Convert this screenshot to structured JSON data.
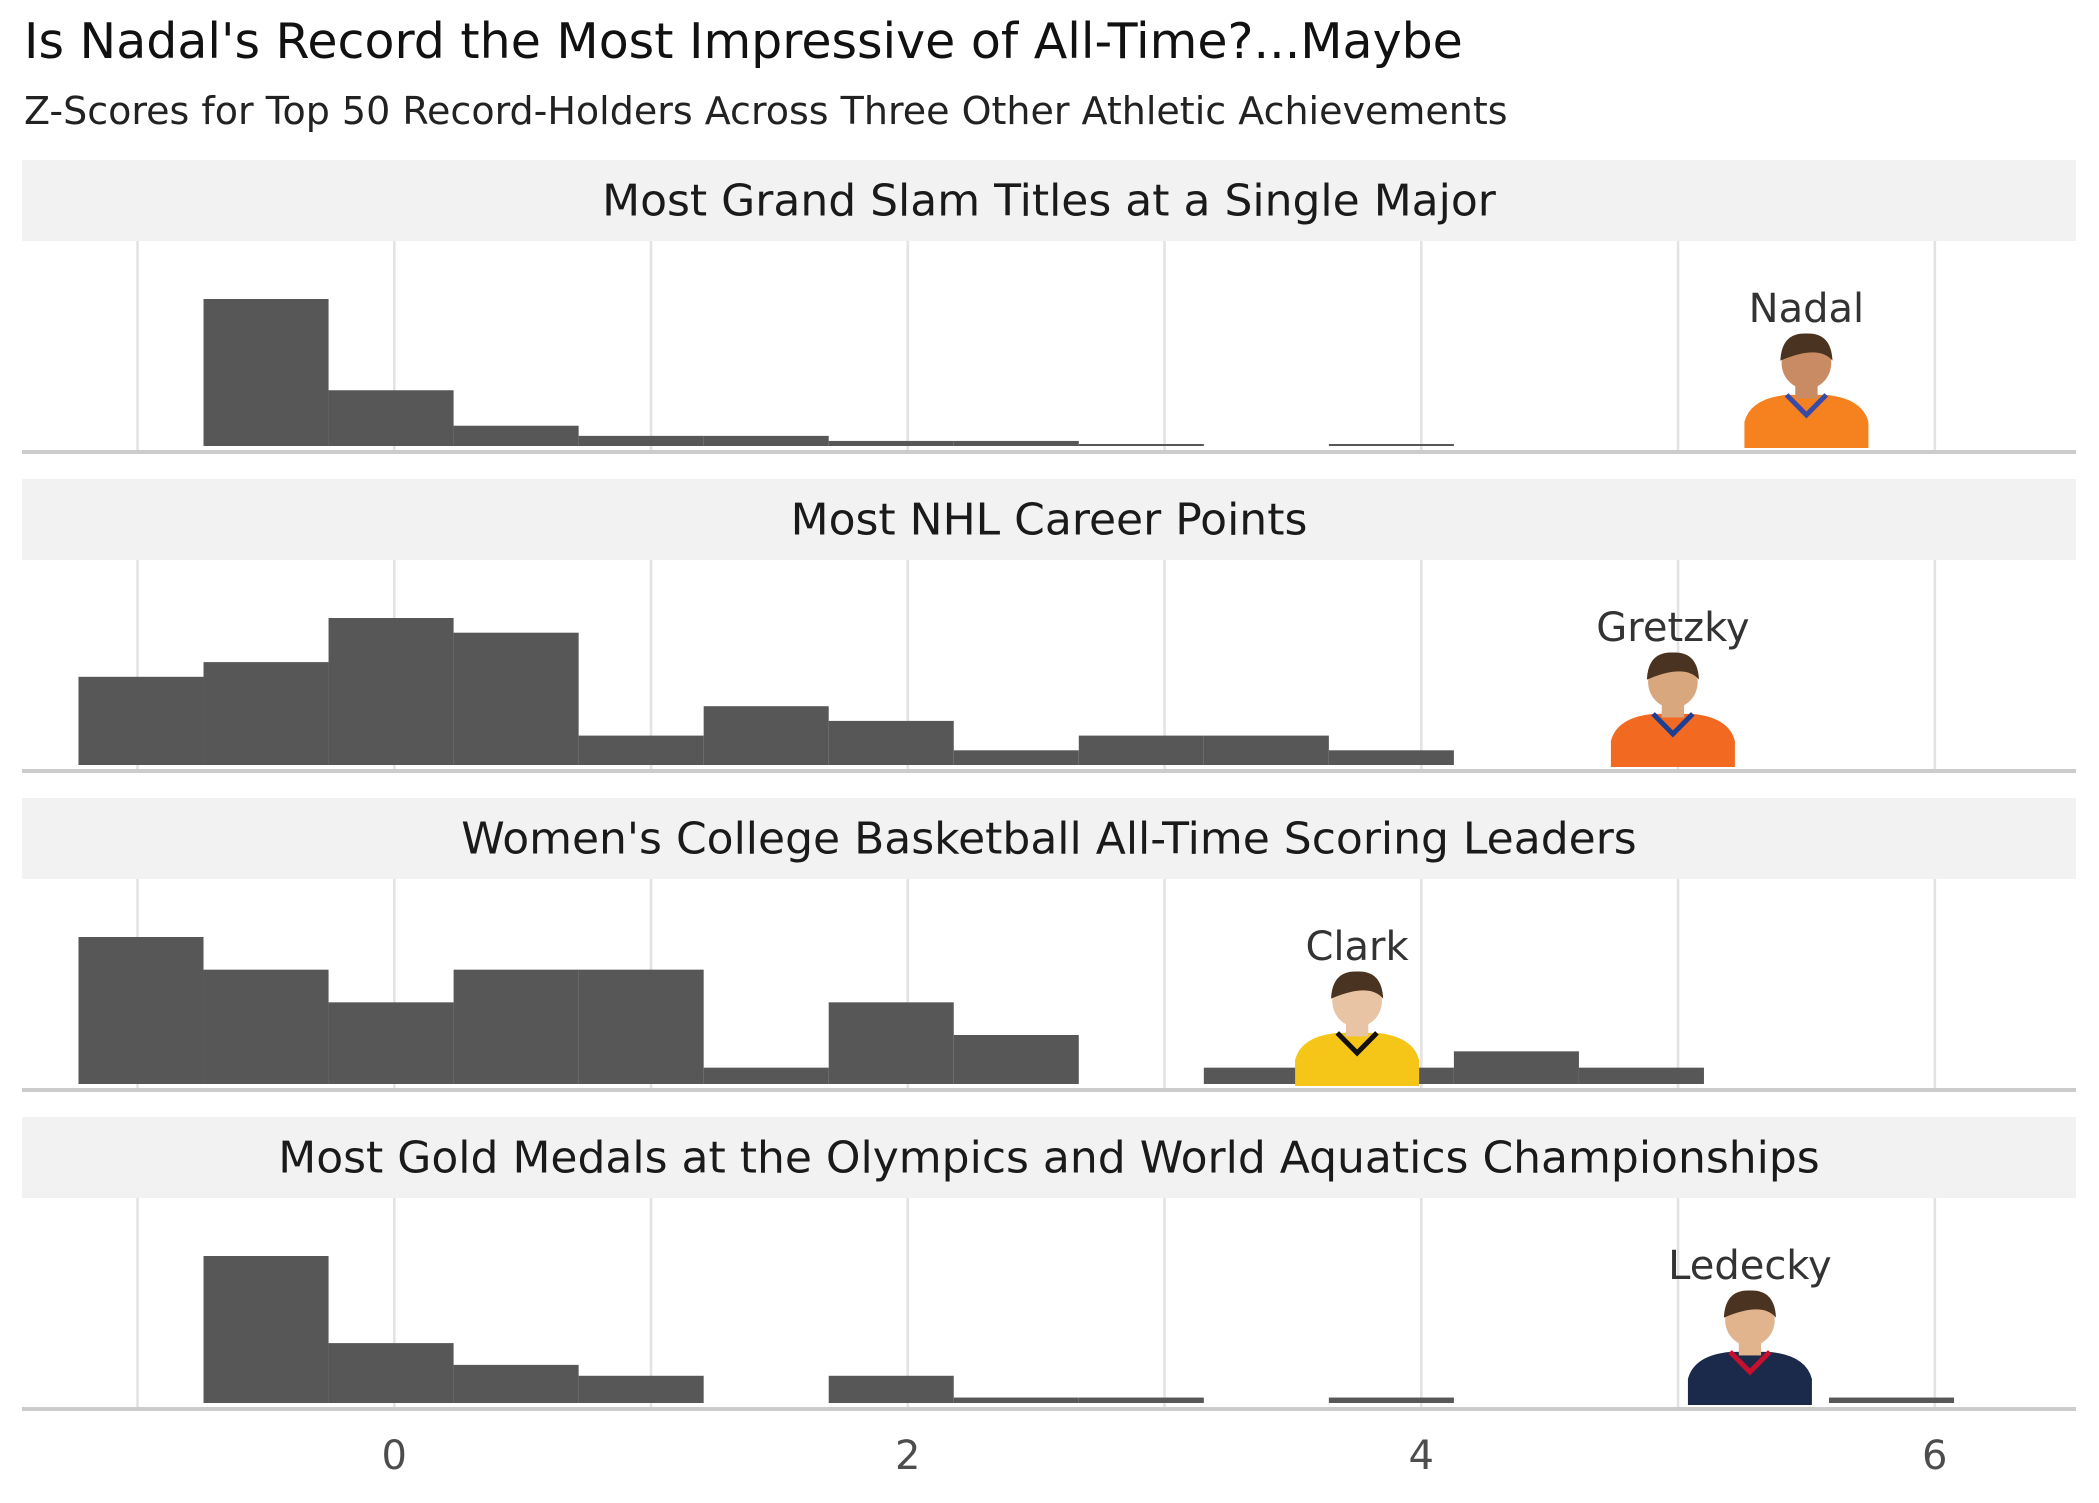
{
  "title": "Is Nadal's Record the Most Impressive of All-Time?...Maybe",
  "subtitle": "Z-Scores for Top 50 Record-Holders Across Three Other Athletic Achievements",
  "chart_data": {
    "type": "bar",
    "subtype": "histogram-facets",
    "x_ticks": [
      0,
      2,
      4,
      6
    ],
    "x_tick_labels": [
      "0",
      "2",
      "4",
      "6"
    ],
    "xlim": [
      -1.45,
      6.55
    ],
    "bin_width": 0.487,
    "grid": true,
    "colors": {
      "bar": "#575757",
      "strip": "#f2f2f2",
      "grid": "#e3e3e3",
      "baseline": "#cccccc"
    },
    "panels": [
      {
        "strip": "Most Grand Slam Titles at a Single Major",
        "ymax": 29,
        "bins": [
          {
            "x0": -1.23,
            "x1": -0.743,
            "count": 0
          },
          {
            "x0": -0.743,
            "x1": -0.256,
            "count": 29
          },
          {
            "x0": -0.256,
            "x1": 0.231,
            "count": 11
          },
          {
            "x0": 0.231,
            "x1": 0.718,
            "count": 4
          },
          {
            "x0": 0.718,
            "x1": 1.205,
            "count": 2
          },
          {
            "x0": 1.205,
            "x1": 1.692,
            "count": 2
          },
          {
            "x0": 1.692,
            "x1": 2.179,
            "count": 1
          },
          {
            "x0": 2.179,
            "x1": 2.666,
            "count": 1
          },
          {
            "x0": 2.666,
            "x1": 3.153,
            "count": 0.3
          },
          {
            "x0": 3.64,
            "x1": 4.127,
            "count": 0.3
          }
        ],
        "highlight": {
          "name": "Nadal",
          "z": 5.5,
          "icon": "nadal-portrait",
          "colors": [
            "#f5821f",
            "#3a4aa8",
            "#c98b63"
          ]
        }
      },
      {
        "strip": "Most NHL Career Points",
        "ymax": 10,
        "bins": [
          {
            "x0": -1.23,
            "x1": -0.743,
            "count": 6
          },
          {
            "x0": -0.743,
            "x1": -0.256,
            "count": 7
          },
          {
            "x0": -0.256,
            "x1": 0.231,
            "count": 10
          },
          {
            "x0": 0.231,
            "x1": 0.718,
            "count": 9
          },
          {
            "x0": 0.718,
            "x1": 1.205,
            "count": 2
          },
          {
            "x0": 1.205,
            "x1": 1.692,
            "count": 4
          },
          {
            "x0": 1.692,
            "x1": 2.179,
            "count": 3
          },
          {
            "x0": 2.179,
            "x1": 2.666,
            "count": 1
          },
          {
            "x0": 2.666,
            "x1": 3.153,
            "count": 2
          },
          {
            "x0": 3.153,
            "x1": 3.64,
            "count": 2
          },
          {
            "x0": 3.64,
            "x1": 4.127,
            "count": 1
          }
        ],
        "highlight": {
          "name": "Gretzky",
          "z": 4.98,
          "icon": "gretzky-portrait",
          "colors": [
            "#f26a21",
            "#1c3f94",
            "#d9a77e"
          ]
        }
      },
      {
        "strip": "Women's College Basketball All-Time Scoring Leaders",
        "ymax": 9,
        "bins": [
          {
            "x0": -1.23,
            "x1": -0.743,
            "count": 9
          },
          {
            "x0": -0.743,
            "x1": -0.256,
            "count": 7
          },
          {
            "x0": -0.256,
            "x1": 0.231,
            "count": 5
          },
          {
            "x0": 0.231,
            "x1": 0.718,
            "count": 7
          },
          {
            "x0": 0.718,
            "x1": 1.205,
            "count": 7
          },
          {
            "x0": 1.205,
            "x1": 1.692,
            "count": 1
          },
          {
            "x0": 1.692,
            "x1": 2.179,
            "count": 5
          },
          {
            "x0": 2.179,
            "x1": 2.666,
            "count": 3
          },
          {
            "x0": 3.153,
            "x1": 3.64,
            "count": 1
          },
          {
            "x0": 3.64,
            "x1": 4.127,
            "count": 1
          },
          {
            "x0": 4.127,
            "x1": 4.614,
            "count": 2
          },
          {
            "x0": 4.614,
            "x1": 5.101,
            "count": 1
          }
        ],
        "highlight": {
          "name": "Clark",
          "z": 3.75,
          "icon": "clark-portrait",
          "colors": [
            "#f5c518",
            "#111111",
            "#e8c4a4"
          ]
        }
      },
      {
        "strip": "Most Gold Medals at the Olympics and World Aquatics Championships",
        "ymax": 27,
        "bins": [
          {
            "x0": -1.23,
            "x1": -0.743,
            "count": 0
          },
          {
            "x0": -0.743,
            "x1": -0.256,
            "count": 27
          },
          {
            "x0": -0.256,
            "x1": 0.231,
            "count": 11
          },
          {
            "x0": 0.231,
            "x1": 0.718,
            "count": 7
          },
          {
            "x0": 0.718,
            "x1": 1.205,
            "count": 5
          },
          {
            "x0": 1.205,
            "x1": 1.692,
            "count": 0
          },
          {
            "x0": 1.692,
            "x1": 2.179,
            "count": 5
          },
          {
            "x0": 2.179,
            "x1": 2.666,
            "count": 1
          },
          {
            "x0": 2.666,
            "x1": 3.153,
            "count": 1
          },
          {
            "x0": 3.64,
            "x1": 4.127,
            "count": 1
          },
          {
            "x0": 5.588,
            "x1": 6.075,
            "count": 1
          }
        ],
        "highlight": {
          "name": "Ledecky",
          "z": 5.28,
          "icon": "ledecky-portrait",
          "colors": [
            "#1b2a4a",
            "#c8102e",
            "#e2b48e"
          ]
        }
      }
    ]
  }
}
